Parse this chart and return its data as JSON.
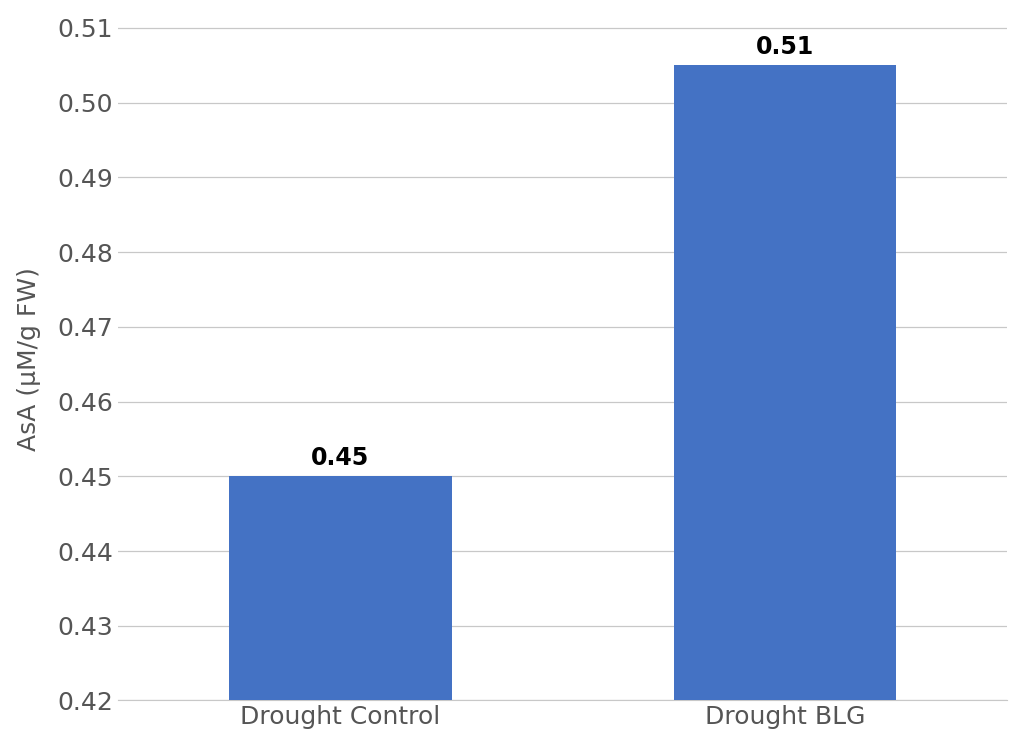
{
  "categories": [
    "Drought Control",
    "Drought BLG"
  ],
  "values": [
    0.45,
    0.505
  ],
  "bar_labels": [
    "0.45",
    "0.51"
  ],
  "bar_color": "#4472C4",
  "ylabel": "AsA (μM/g FW)",
  "ylim": [
    0.42,
    0.51
  ],
  "yticks": [
    0.42,
    0.43,
    0.44,
    0.45,
    0.46,
    0.47,
    0.48,
    0.49,
    0.5,
    0.51
  ],
  "background_color": "#ffffff",
  "grid_color": "#c8c8c8",
  "ylabel_fontsize": 18,
  "tick_fontsize": 18,
  "annotation_fontsize": 17,
  "bar_width": 0.25,
  "bar_positions": [
    0.25,
    0.75
  ]
}
